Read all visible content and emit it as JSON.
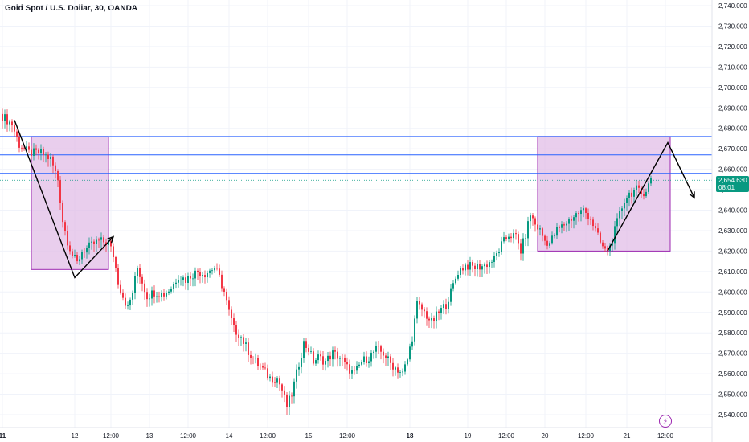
{
  "header": {
    "title": "Gold Spot / U.S. Dollar, 30, OANDA"
  },
  "price_tag": {
    "price": "2,654.630",
    "countdown": "08:01",
    "color": "#089981"
  },
  "colors": {
    "up": "#089981",
    "down": "#f23645",
    "hline": "#2962ff",
    "zone_fill": "#e1bee7",
    "zone_border": "#9c27b0",
    "arrow": "#000000"
  },
  "chart_data": {
    "type": "candlestick",
    "instrument": "Gold Spot / U.S. Dollar",
    "timeframe": "30",
    "source": "OANDA",
    "ylim": [
      2535,
      2742
    ],
    "y_ticks": [
      "2,540.000",
      "2,550.000",
      "2,560.000",
      "2,570.000",
      "2,580.000",
      "2,590.000",
      "2,600.000",
      "2,610.000",
      "2,620.000",
      "2,630.000",
      "2,640.000",
      "2,650.000",
      "2,660.000",
      "2,670.000",
      "2,680.000",
      "2,690.000",
      "2,700.000",
      "2,710.000",
      "2,720.000",
      "2,730.000",
      "2,740.000"
    ],
    "y_tick_values": [
      2540,
      2550,
      2560,
      2570,
      2580,
      2590,
      2600,
      2610,
      2620,
      2630,
      2640,
      2650,
      2660,
      2670,
      2680,
      2690,
      2700,
      2710,
      2720,
      2730,
      2740
    ],
    "x_ticks": [
      {
        "label": "11",
        "bar": 0,
        "bold": true
      },
      {
        "label": "12",
        "bar": 30,
        "bold": false
      },
      {
        "label": "12:00",
        "bar": 45,
        "bold": false
      },
      {
        "label": "13",
        "bar": 61,
        "bold": false
      },
      {
        "label": "12:00",
        "bar": 77,
        "bold": false
      },
      {
        "label": "14",
        "bar": 94,
        "bold": false
      },
      {
        "label": "12:00",
        "bar": 110,
        "bold": false
      },
      {
        "label": "15",
        "bar": 127,
        "bold": false
      },
      {
        "label": "12:00",
        "bar": 143,
        "bold": false
      },
      {
        "label": "18",
        "bar": 169,
        "bold": true
      },
      {
        "label": "19",
        "bar": 193,
        "bold": false
      },
      {
        "label": "12:00",
        "bar": 209,
        "bold": false
      },
      {
        "label": "20",
        "bar": 225,
        "bold": false
      },
      {
        "label": "12:00",
        "bar": 242,
        "bold": false
      },
      {
        "label": "21",
        "bar": 259,
        "bold": false
      },
      {
        "label": "12:00",
        "bar": 275,
        "bold": false
      }
    ],
    "anchors": [
      [
        0,
        2686
      ],
      [
        4,
        2682
      ],
      [
        7,
        2672
      ],
      [
        11,
        2668
      ],
      [
        16,
        2668
      ],
      [
        20,
        2665
      ],
      [
        23,
        2655
      ],
      [
        25,
        2635
      ],
      [
        27,
        2625
      ],
      [
        29,
        2618
      ],
      [
        31,
        2614
      ],
      [
        33,
        2620
      ],
      [
        36,
        2622
      ],
      [
        40,
        2625
      ],
      [
        44,
        2624
      ],
      [
        46,
        2618
      ],
      [
        48,
        2605
      ],
      [
        50,
        2598
      ],
      [
        52,
        2592
      ],
      [
        54,
        2600
      ],
      [
        56,
        2612
      ],
      [
        58,
        2605
      ],
      [
        60,
        2598
      ],
      [
        63,
        2600
      ],
      [
        67,
        2599
      ],
      [
        70,
        2602
      ],
      [
        73,
        2608
      ],
      [
        76,
        2606
      ],
      [
        78,
        2608
      ],
      [
        81,
        2610
      ],
      [
        84,
        2609
      ],
      [
        88,
        2612
      ],
      [
        90,
        2607
      ],
      [
        92,
        2600
      ],
      [
        94,
        2590
      ],
      [
        96,
        2582
      ],
      [
        99,
        2578
      ],
      [
        102,
        2571
      ],
      [
        105,
        2566
      ],
      [
        108,
        2562
      ],
      [
        111,
        2558
      ],
      [
        114,
        2558
      ],
      [
        116,
        2552
      ],
      [
        118,
        2544
      ],
      [
        120,
        2550
      ],
      [
        122,
        2560
      ],
      [
        125,
        2575
      ],
      [
        127,
        2572
      ],
      [
        129,
        2566
      ],
      [
        131,
        2568
      ],
      [
        134,
        2566
      ],
      [
        137,
        2570
      ],
      [
        140,
        2568
      ],
      [
        143,
        2563
      ],
      [
        146,
        2560
      ],
      [
        149,
        2566
      ],
      [
        152,
        2568
      ],
      [
        155,
        2572
      ],
      [
        158,
        2570
      ],
      [
        161,
        2565
      ],
      [
        164,
        2562
      ],
      [
        166,
        2560
      ],
      [
        168,
        2567
      ],
      [
        170,
        2578
      ],
      [
        172,
        2594
      ],
      [
        175,
        2590
      ],
      [
        178,
        2585
      ],
      [
        181,
        2590
      ],
      [
        184,
        2594
      ],
      [
        186,
        2600
      ],
      [
        189,
        2610
      ],
      [
        192,
        2613
      ],
      [
        196,
        2612
      ],
      [
        200,
        2613
      ],
      [
        204,
        2616
      ],
      [
        207,
        2623
      ],
      [
        210,
        2628
      ],
      [
        213,
        2627
      ],
      [
        215,
        2620
      ],
      [
        217,
        2628
      ],
      [
        219,
        2638
      ],
      [
        221,
        2633
      ],
      [
        223,
        2630
      ],
      [
        225,
        2625
      ],
      [
        227,
        2624
      ],
      [
        230,
        2630
      ],
      [
        234,
        2634
      ],
      [
        238,
        2638
      ],
      [
        241,
        2640
      ],
      [
        244,
        2636
      ],
      [
        246,
        2630
      ],
      [
        248,
        2624
      ],
      [
        250,
        2620
      ],
      [
        252,
        2622
      ],
      [
        254,
        2630
      ],
      [
        256,
        2638
      ],
      [
        258,
        2645
      ],
      [
        260,
        2648
      ],
      [
        263,
        2650
      ],
      [
        265,
        2648
      ],
      [
        267,
        2650
      ],
      [
        269,
        2655
      ]
    ],
    "horizontal_lines": [
      2676,
      2667,
      2658
    ],
    "last_price_line": 2654.63,
    "zones": [
      {
        "bar_start": 12,
        "bar_end": 44,
        "y_top": 2676,
        "y_bottom": 2611
      },
      {
        "bar_start": 222,
        "bar_end": 277,
        "y_top": 2676,
        "y_bottom": 2620
      }
    ],
    "drawn_arrows": [
      [
        [
          5,
          2684
        ],
        [
          30,
          2607
        ],
        [
          46,
          2627
        ]
      ],
      [
        [
          251,
          2620
        ],
        [
          276,
          2673
        ],
        [
          287,
          2646
        ]
      ]
    ]
  }
}
